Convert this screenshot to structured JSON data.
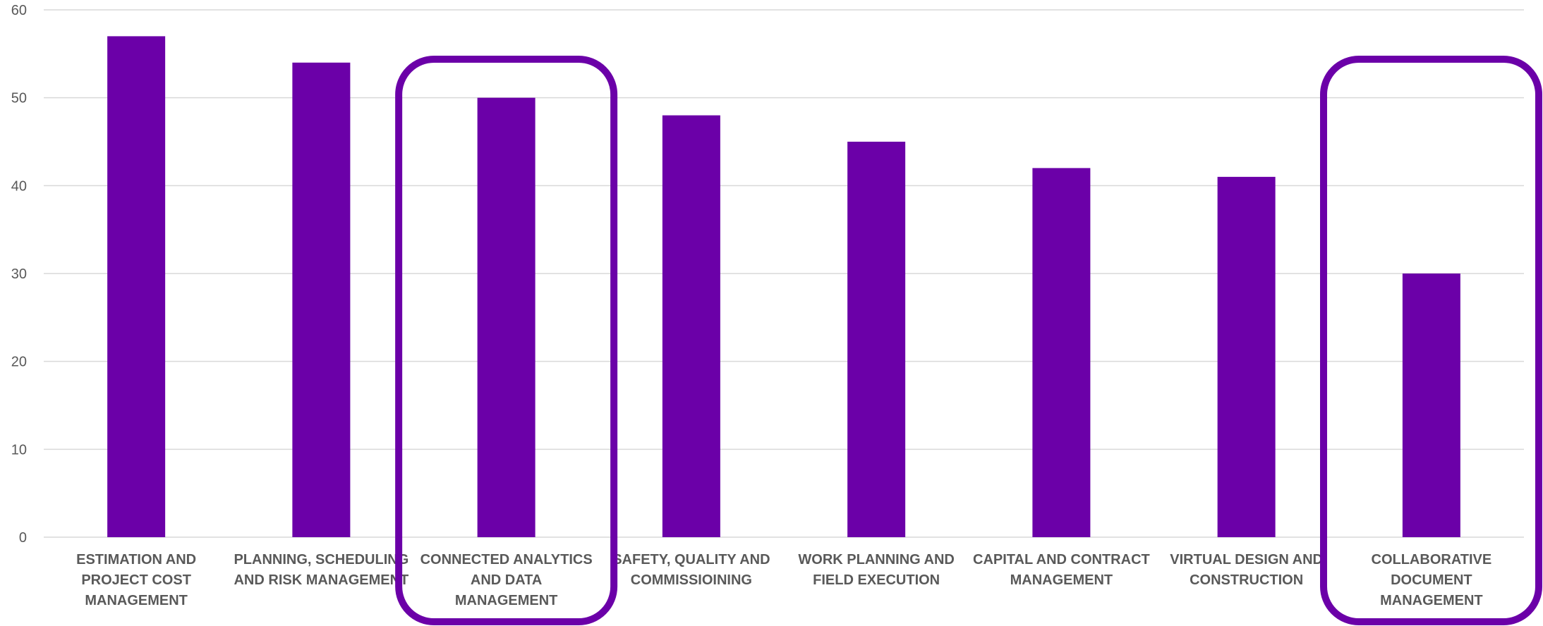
{
  "chart_data": {
    "type": "bar",
    "categories": [
      [
        "ESTIMATION AND",
        "PROJECT COST",
        "MANAGEMENT"
      ],
      [
        "PLANNING, SCHEDULING",
        "AND RISK MANAGEMENT"
      ],
      [
        "CONNECTED ANALYTICS",
        "AND DATA",
        "MANAGEMENT"
      ],
      [
        "SAFETY, QUALITY AND",
        "COMMISSIOINING"
      ],
      [
        "WORK PLANNING AND",
        "FIELD EXECUTION"
      ],
      [
        "CAPITAL AND CONTRACT",
        "MANAGEMENT"
      ],
      [
        "VIRTUAL DESIGN AND",
        "CONSTRUCTION"
      ],
      [
        "COLLABORATIVE",
        "DOCUMENT",
        "MANAGEMENT"
      ]
    ],
    "values": [
      57,
      54,
      50,
      48,
      45,
      42,
      41,
      30
    ],
    "ylim": [
      0,
      60
    ],
    "yticks": [
      0,
      10,
      20,
      30,
      40,
      50,
      60
    ],
    "grid": true,
    "highlighted_categories": [
      2,
      7
    ],
    "colors": {
      "bar": "#6b00a8",
      "highlight": "#6b00a8",
      "grid": "#d9d9d9",
      "text": "#595959"
    }
  }
}
